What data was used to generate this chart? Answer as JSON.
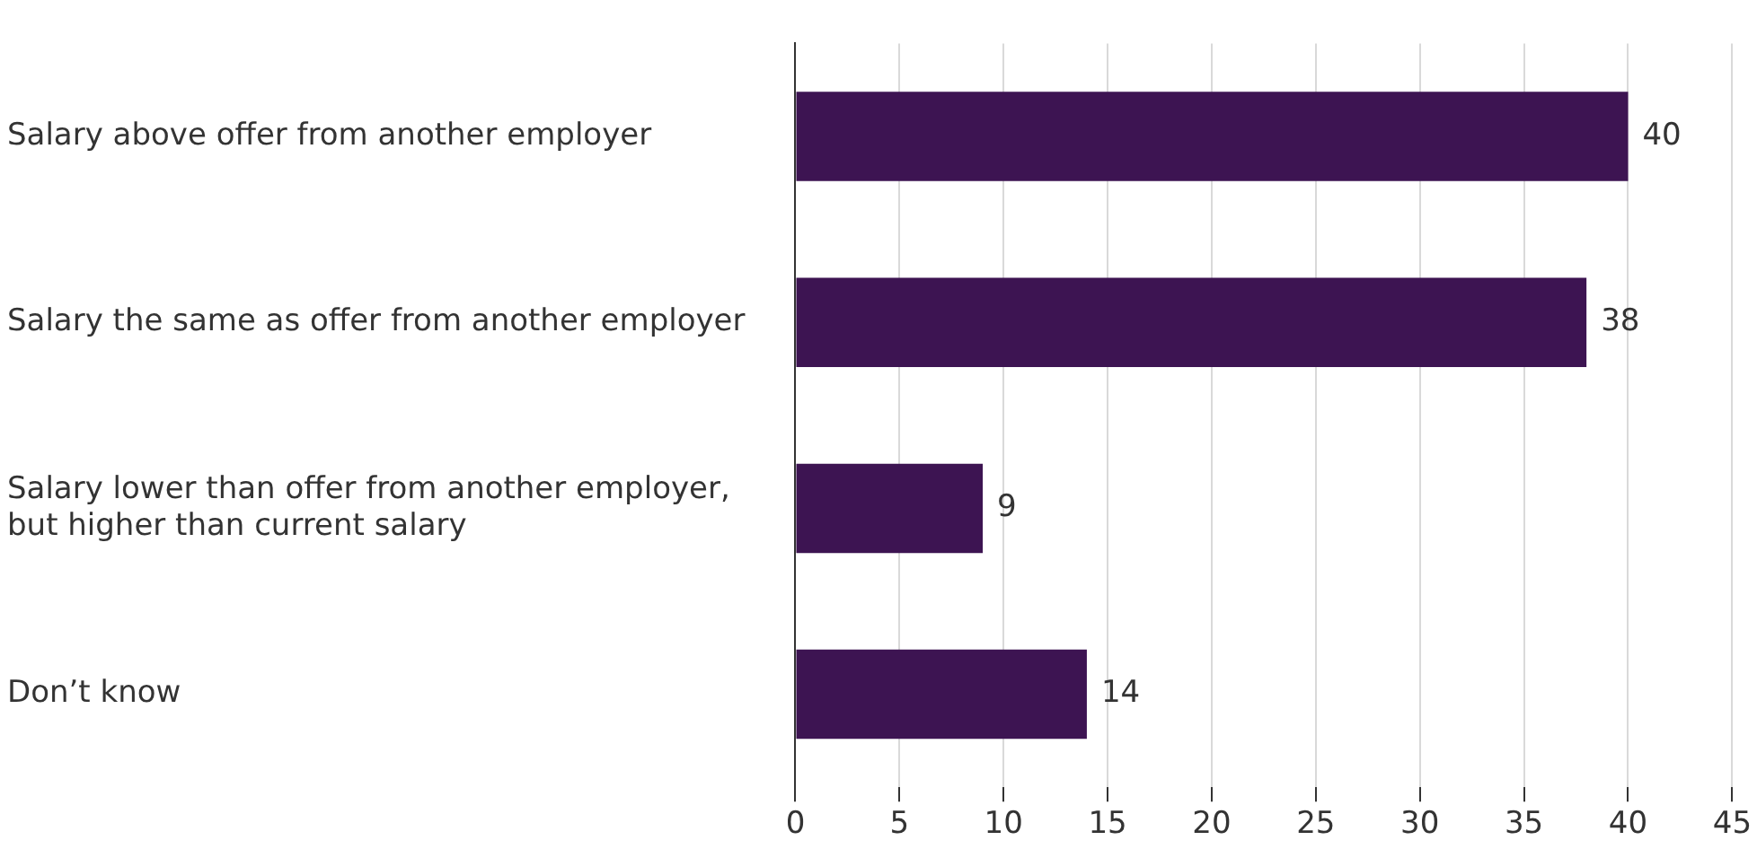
{
  "chart_data": {
    "type": "bar",
    "orientation": "horizontal",
    "categories": [
      "Salary above offer from another employer",
      "Salary the same as offer from another employer",
      "Salary lower than offer from another employer,\nbut higher than current salary",
      "Don’t know"
    ],
    "values": [
      40,
      38,
      9,
      14
    ],
    "color": "#3d1452",
    "xlim": [
      0,
      45
    ],
    "xticks": [
      0,
      5,
      10,
      15,
      20,
      25,
      30,
      35,
      40,
      45
    ],
    "grid": "x",
    "data_labels": true,
    "legend": false
  }
}
